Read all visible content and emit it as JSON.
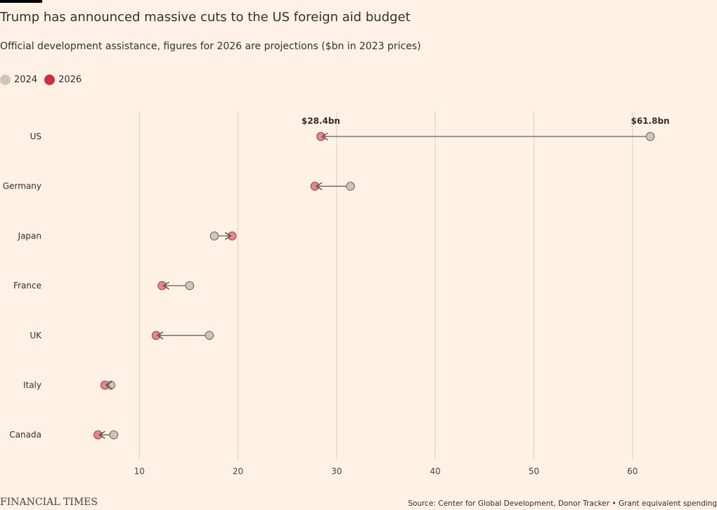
{
  "header": {
    "title": "Trump has announced massive cuts to the US foreign aid budget",
    "subtitle": "Official development assistance, figures for 2026 are projections ($bn in 2023 prices)"
  },
  "legend": [
    {
      "label": "2024",
      "color": "#cec6b9"
    },
    {
      "label": "2026",
      "color": "#cc2f3f"
    }
  ],
  "chart_data": {
    "type": "dumbbell",
    "title": "Trump has announced massive cuts to the US foreign aid budget",
    "subtitle": "Official development assistance, figures for 2026 are projections ($bn in 2023 prices)",
    "categories": [
      "US",
      "Germany",
      "Japan",
      "France",
      "UK",
      "Italy",
      "Canada"
    ],
    "series": [
      {
        "name": "2024",
        "color": "#cec6b9",
        "values": [
          61.8,
          31.4,
          17.6,
          15.1,
          17.1,
          7.1,
          7.4
        ]
      },
      {
        "name": "2026",
        "color": "#cc2f3f",
        "values": [
          28.4,
          27.8,
          19.4,
          12.3,
          11.7,
          6.5,
          5.8
        ]
      }
    ],
    "xlim": [
      1,
      67
    ],
    "xticks": [
      10,
      20,
      30,
      40,
      50,
      60
    ],
    "grid": true,
    "legend_position": "top-left",
    "annotations": [
      {
        "category": "US",
        "series": "2026",
        "text": "$28.4bn"
      },
      {
        "category": "US",
        "series": "2024",
        "text": "$61.8bn"
      }
    ]
  },
  "footer": {
    "brand": "FINANCIAL TIMES",
    "source": "Source: Center for Global Development, Donor Tracker • Grant equivalent spending"
  }
}
